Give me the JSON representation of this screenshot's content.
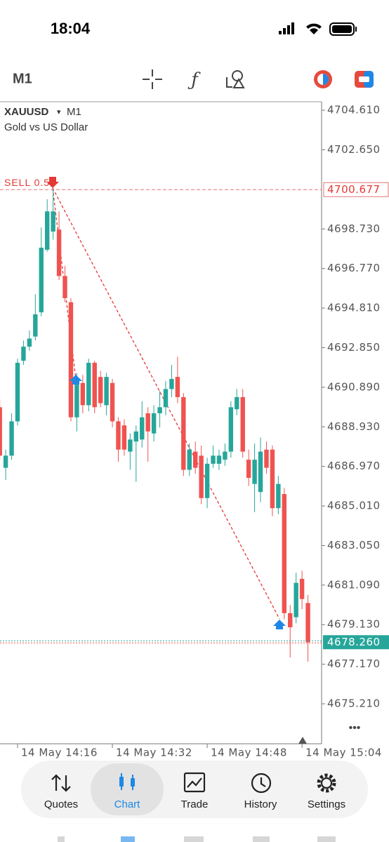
{
  "status_bar": {
    "time": "18:04"
  },
  "toolbar": {
    "timeframe": "M1"
  },
  "chart_data": {
    "type": "candlestick",
    "title": "XAUUSD",
    "dropdown": "▾",
    "timeframe": "M1",
    "subtitle": "Gold vs US Dollar",
    "categories": [
      null,
      null,
      null,
      "14 May 14:16",
      null,
      null,
      null,
      null,
      null,
      null,
      null,
      null,
      null,
      null,
      null,
      null,
      null,
      null,
      null,
      "14 May 14:32",
      null,
      null,
      null,
      null,
      null,
      null,
      null,
      null,
      null,
      null,
      null,
      null,
      null,
      null,
      null,
      "14 May 14:48",
      null,
      null,
      null,
      null,
      null,
      null,
      null,
      null,
      null,
      null,
      null,
      null,
      null,
      null,
      null,
      "14 May 15:04",
      null
    ],
    "open": [
      4689.9,
      4686.9,
      4687.5,
      4689.2,
      4692.2,
      4692.9,
      4693.4,
      4694.6,
      4697.7,
      4698.6,
      4698.7,
      4696.4,
      4695.1,
      4689.4,
      4691.1,
      4690.0,
      4692.1,
      4691.4,
      4690.0,
      4691.1,
      4689.2,
      4689.0,
      4687.7,
      4688.2,
      4688.3,
      4689.6,
      4688.6,
      4689.6,
      4689.9,
      4690.8,
      4691.4,
      4690.4,
      4686.8,
      4687.7,
      4687.5,
      4685.4,
      4687.1,
      4687.1,
      4687.3,
      4687.7,
      4689.8,
      4690.4,
      4687.3,
      4686.1,
      4685.7,
      4687.8,
      4687.8,
      4684.9,
      4685.6,
      4679.7,
      4679.5,
      4681.4,
      4680.2
    ],
    "high": [
      4690.3,
      4687.8,
      4689.6,
      4692.3,
      4693.2,
      4693.7,
      4695.5,
      4698.8,
      4700.2,
      4700.7,
      4699.6,
      4696.9,
      4695.3,
      4691.6,
      4691.5,
      4692.3,
      4692.2,
      4691.7,
      4691.6,
      4691.3,
      4689.4,
      4689.3,
      4688.6,
      4689.0,
      4690.2,
      4689.9,
      4690.0,
      4690.7,
      4691.2,
      4692.0,
      4692.4,
      4690.6,
      4688.1,
      4688.2,
      4688.0,
      4687.4,
      4688.0,
      4687.8,
      4688.1,
      4690.2,
      4690.8,
      4690.8,
      4687.8,
      4688.1,
      4688.4,
      4688.2,
      4688.0,
      4686.5,
      4685.9,
      4680.1,
      4681.7,
      4681.8,
      4680.6
    ],
    "low": [
      4687.3,
      4686.3,
      4687.3,
      4689.0,
      4692.0,
      4692.7,
      4693.2,
      4694.4,
      4697.6,
      4698.2,
      4696.2,
      4695.1,
      4689.2,
      4688.7,
      4689.6,
      4689.7,
      4689.6,
      4689.9,
      4689.5,
      4688.9,
      4687.2,
      4687.5,
      4686.8,
      4686.2,
      4687.9,
      4687.2,
      4688.2,
      4688.9,
      4689.5,
      4690.4,
      4690.1,
      4686.5,
      4686.5,
      4686.6,
      4685.1,
      4684.9,
      4686.9,
      4686.8,
      4687.0,
      4687.4,
      4689.5,
      4687.4,
      4686.0,
      4684.7,
      4685.2,
      4686.6,
      4684.5,
      4684.6,
      4679.4,
      4677.5,
      4679.2,
      4679.9,
      4677.3
    ],
    "close": [
      4687.5,
      4687.5,
      4689.2,
      4692.1,
      4692.9,
      4693.3,
      4694.5,
      4697.8,
      4699.6,
      4699.6,
      4696.4,
      4695.3,
      4689.4,
      4691.3,
      4690.0,
      4692.1,
      4689.9,
      4690.1,
      4691.4,
      4689.2,
      4687.8,
      4687.8,
      4688.3,
      4688.7,
      4689.4,
      4688.7,
      4689.6,
      4689.9,
      4690.8,
      4691.3,
      4690.4,
      4686.8,
      4687.8,
      4686.9,
      4685.4,
      4687.1,
      4687.5,
      4687.5,
      4687.7,
      4689.9,
      4690.4,
      4687.7,
      4686.4,
      4687.3,
      4687.7,
      4686.9,
      4684.9,
      4686.1,
      4679.7,
      4679.0,
      4681.2,
      4680.4,
      4678.26
    ],
    "up_color": "#26a69a",
    "down_color": "#ef5350",
    "ylim": [
      4673.23,
      4705.03
    ],
    "yticks": [
      {
        "value": 4704.61,
        "label": "4704.610"
      },
      {
        "value": 4702.65,
        "label": "4702.650"
      },
      {
        "value": 4698.73,
        "label": "4698.730"
      },
      {
        "value": 4696.77,
        "label": "4696.770"
      },
      {
        "value": 4694.81,
        "label": "4694.810"
      },
      {
        "value": 4692.85,
        "label": "4692.850"
      },
      {
        "value": 4690.89,
        "label": "4690.890"
      },
      {
        "value": 4688.93,
        "label": "4688.930"
      },
      {
        "value": 4686.97,
        "label": "4686.970"
      },
      {
        "value": 4685.01,
        "label": "4685.010"
      },
      {
        "value": 4683.05,
        "label": "4683.050"
      },
      {
        "value": 4681.09,
        "label": "4681.090"
      },
      {
        "value": 4679.13,
        "label": "4679.130"
      },
      {
        "value": 4677.17,
        "label": "4677.170"
      },
      {
        "value": 4675.21,
        "label": "4675.210"
      }
    ],
    "sell_order": {
      "label": "SELL 0.5",
      "price": 4700.677
    },
    "last_price": {
      "value": 4678.26,
      "label": "4678.260"
    }
  },
  "more": "•••",
  "nav": {
    "items": [
      {
        "label": "Quotes",
        "active": false
      },
      {
        "label": "Chart",
        "active": true
      },
      {
        "label": "Trade",
        "active": false
      },
      {
        "label": "History",
        "active": false
      },
      {
        "label": "Settings",
        "active": false
      }
    ]
  }
}
